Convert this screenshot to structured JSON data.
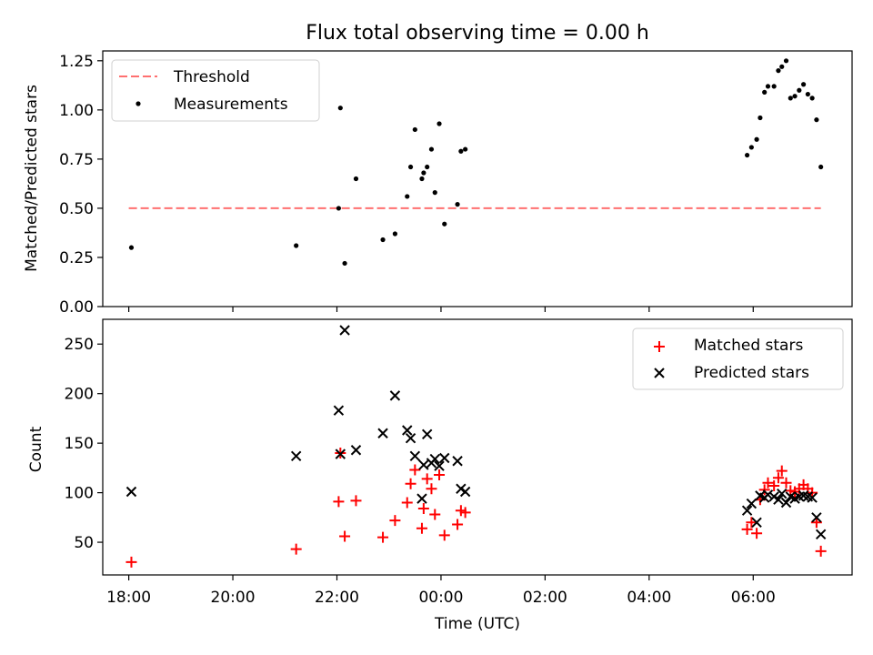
{
  "figure": {
    "title": "Flux total observing time = 0.00 h"
  },
  "chart_data": [
    {
      "type": "scatter",
      "panel": "top",
      "title": "Flux total observing time = 0.00 h",
      "xlabel": "",
      "ylabel": "Matched/Predicted stars",
      "ylim": [
        0,
        1.3
      ],
      "yticks": [
        0.0,
        0.25,
        0.5,
        0.75,
        1.0,
        1.25
      ],
      "ytick_labels": [
        "0.00",
        "0.25",
        "0.50",
        "0.75",
        "1.00",
        "1.25"
      ],
      "grid": false,
      "legend_position": "top-left",
      "threshold": {
        "name": "Threshold",
        "value": 0.5,
        "x_start": "18:00",
        "x_end": "07:18",
        "color": "#ff7070"
      },
      "series": [
        {
          "name": "Measurements",
          "marker": "dot",
          "color": "#000000",
          "points": [
            [
              "18:03",
              0.3
            ],
            [
              "21:13",
              0.31
            ],
            [
              "22:02",
              0.5
            ],
            [
              "22:04",
              1.01
            ],
            [
              "22:09",
              0.22
            ],
            [
              "22:22",
              0.65
            ],
            [
              "22:53",
              0.34
            ],
            [
              "23:07",
              0.37
            ],
            [
              "23:21",
              0.56
            ],
            [
              "23:25",
              0.71
            ],
            [
              "23:30",
              0.9
            ],
            [
              "23:38",
              0.65
            ],
            [
              "23:40",
              0.68
            ],
            [
              "23:44",
              0.71
            ],
            [
              "23:49",
              0.8
            ],
            [
              "23:53",
              0.58
            ],
            [
              "23:58",
              0.93
            ],
            [
              "00:04",
              0.42
            ],
            [
              "00:19",
              0.52
            ],
            [
              "00:23",
              0.79
            ],
            [
              "00:28",
              0.8
            ],
            [
              "05:53",
              0.77
            ],
            [
              "05:58",
              0.81
            ],
            [
              "06:04",
              0.85
            ],
            [
              "06:08",
              0.96
            ],
            [
              "06:13",
              1.09
            ],
            [
              "06:17",
              1.12
            ],
            [
              "06:24",
              1.12
            ],
            [
              "06:29",
              1.2
            ],
            [
              "06:33",
              1.22
            ],
            [
              "06:38",
              1.25
            ],
            [
              "06:43",
              1.06
            ],
            [
              "06:48",
              1.07
            ],
            [
              "06:53",
              1.1
            ],
            [
              "06:58",
              1.13
            ],
            [
              "07:03",
              1.08
            ],
            [
              "07:08",
              1.06
            ],
            [
              "07:13",
              0.95
            ],
            [
              "07:18",
              0.71
            ]
          ]
        }
      ]
    },
    {
      "type": "scatter",
      "panel": "bottom",
      "xlabel": "Time (UTC)",
      "ylabel": "Count",
      "xticks": [
        "18:00",
        "20:00",
        "22:00",
        "00:00",
        "02:00",
        "04:00",
        "06:00"
      ],
      "ylim": [
        17,
        275
      ],
      "yticks": [
        50,
        100,
        150,
        200,
        250
      ],
      "grid": false,
      "legend_position": "top-right",
      "series": [
        {
          "name": "Matched stars",
          "marker": "plus",
          "color": "#ff0000",
          "points": [
            [
              "18:03",
              30
            ],
            [
              "21:13",
              43
            ],
            [
              "22:02",
              91
            ],
            [
              "22:04",
              140
            ],
            [
              "22:09",
              56
            ],
            [
              "22:22",
              92
            ],
            [
              "22:53",
              55
            ],
            [
              "23:07",
              72
            ],
            [
              "23:21",
              90
            ],
            [
              "23:25",
              109
            ],
            [
              "23:30",
              123
            ],
            [
              "23:38",
              64
            ],
            [
              "23:40",
              84
            ],
            [
              "23:44",
              114
            ],
            [
              "23:49",
              104
            ],
            [
              "23:53",
              78
            ],
            [
              "23:58",
              118
            ],
            [
              "00:04",
              57
            ],
            [
              "00:19",
              68
            ],
            [
              "00:23",
              82
            ],
            [
              "00:28",
              80
            ],
            [
              "05:53",
              63
            ],
            [
              "05:58",
              70
            ],
            [
              "06:04",
              59
            ],
            [
              "06:08",
              93
            ],
            [
              "06:13",
              103
            ],
            [
              "06:17",
              110
            ],
            [
              "06:24",
              107
            ],
            [
              "06:29",
              115
            ],
            [
              "06:33",
              122
            ],
            [
              "06:38",
              110
            ],
            [
              "06:43",
              102
            ],
            [
              "06:48",
              101
            ],
            [
              "06:53",
              104
            ],
            [
              "06:58",
              108
            ],
            [
              "07:03",
              104
            ],
            [
              "07:08",
              100
            ],
            [
              "07:13",
              70
            ],
            [
              "07:18",
              41
            ]
          ]
        },
        {
          "name": "Predicted stars",
          "marker": "x",
          "color": "#000000",
          "points": [
            [
              "18:03",
              101
            ],
            [
              "21:13",
              137
            ],
            [
              "22:02",
              183
            ],
            [
              "22:04",
              139
            ],
            [
              "22:09",
              264
            ],
            [
              "22:22",
              143
            ],
            [
              "22:53",
              160
            ],
            [
              "23:07",
              198
            ],
            [
              "23:21",
              163
            ],
            [
              "23:25",
              155
            ],
            [
              "23:30",
              137
            ],
            [
              "23:38",
              94
            ],
            [
              "23:40",
              128
            ],
            [
              "23:44",
              159
            ],
            [
              "23:49",
              130
            ],
            [
              "23:53",
              134
            ],
            [
              "23:58",
              127
            ],
            [
              "00:04",
              135
            ],
            [
              "00:19",
              132
            ],
            [
              "00:23",
              104
            ],
            [
              "00:28",
              101
            ],
            [
              "05:53",
              82
            ],
            [
              "05:58",
              89
            ],
            [
              "06:04",
              70
            ],
            [
              "06:08",
              97
            ],
            [
              "06:13",
              95
            ],
            [
              "06:17",
              98
            ],
            [
              "06:24",
              96
            ],
            [
              "06:29",
              93
            ],
            [
              "06:33",
              99
            ],
            [
              "06:38",
              90
            ],
            [
              "06:43",
              96
            ],
            [
              "06:48",
              94
            ],
            [
              "06:53",
              96
            ],
            [
              "06:58",
              97
            ],
            [
              "07:03",
              96
            ],
            [
              "07:08",
              95
            ],
            [
              "07:13",
              75
            ],
            [
              "07:18",
              58
            ]
          ]
        }
      ]
    }
  ]
}
